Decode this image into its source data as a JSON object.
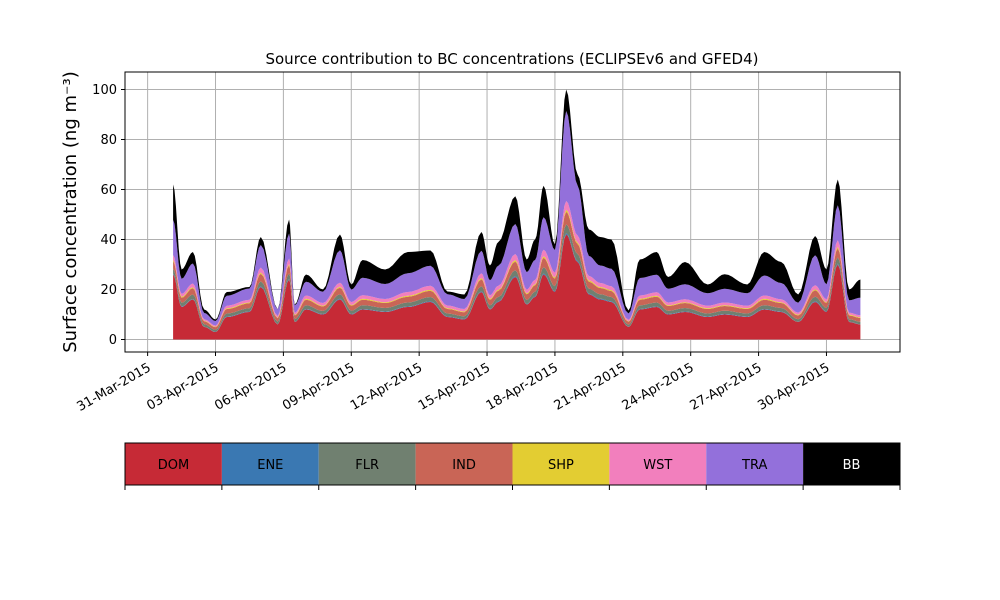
{
  "chart_data": {
    "type": "area",
    "title": "Source contribution to BC concentrations (ECLIPSEv6 and GFED4)",
    "ylabel": "Surface concentration (ng m⁻³)",
    "xlabel": "",
    "ylim": [
      -5,
      107
    ],
    "xlim": [
      "2015-03-30T00:00",
      "2015-05-03T06:00"
    ],
    "grid": true,
    "yticks": [
      0,
      20,
      40,
      60,
      80,
      100
    ],
    "xticks": [
      "2015-03-31",
      "2015-04-03",
      "2015-04-06",
      "2015-04-09",
      "2015-04-12",
      "2015-04-15",
      "2015-04-18",
      "2015-04-21",
      "2015-04-24",
      "2015-04-27",
      "2015-04-30"
    ],
    "xtick_labels": [
      "31-Mar-2015",
      "03-Apr-2015",
      "06-Apr-2015",
      "09-Apr-2015",
      "12-Apr-2015",
      "15-Apr-2015",
      "18-Apr-2015",
      "21-Apr-2015",
      "24-Apr-2015",
      "27-Apr-2015",
      "30-Apr-2015"
    ],
    "stacked": true,
    "total_key_points": {
      "x": [
        "2015-04-01T03:00",
        "2015-04-01T12:00",
        "2015-04-02T00:00",
        "2015-04-02T12:00",
        "2015-04-03T00:00",
        "2015-04-03T12:00",
        "2015-04-04T12:00",
        "2015-04-05T00:00",
        "2015-04-05T18:00",
        "2015-04-06T06:00",
        "2015-04-06T12:00",
        "2015-04-07T00:00",
        "2015-04-07T18:00",
        "2015-04-08T12:00",
        "2015-04-09T00:00",
        "2015-04-09T12:00",
        "2015-04-10T12:00",
        "2015-04-11T12:00",
        "2015-04-12T12:00",
        "2015-04-13T06:00",
        "2015-04-14T00:00",
        "2015-04-14T18:00",
        "2015-04-15T03:00",
        "2015-04-15T12:00",
        "2015-04-16T06:00",
        "2015-04-16T18:00",
        "2015-04-17T03:00",
        "2015-04-17T12:00",
        "2015-04-18T00:00",
        "2015-04-18T12:00",
        "2015-04-19T00:00",
        "2015-04-19T12:00",
        "2015-04-20T00:00",
        "2015-04-20T12:00",
        "2015-04-21T06:00",
        "2015-04-21T18:00",
        "2015-04-22T12:00",
        "2015-04-23T00:00",
        "2015-04-23T18:00",
        "2015-04-24T18:00",
        "2015-04-25T12:00",
        "2015-04-26T12:00",
        "2015-04-27T06:00",
        "2015-04-28T00:00",
        "2015-04-28T18:00",
        "2015-04-29T12:00",
        "2015-04-30T00:00",
        "2015-04-30T12:00",
        "2015-05-01T00:00",
        "2015-05-01T12:00"
      ],
      "y": [
        62,
        28,
        35,
        12,
        8,
        18,
        20,
        40,
        12,
        46,
        14,
        26,
        20,
        42,
        22,
        32,
        28,
        34,
        36,
        20,
        18,
        44,
        30,
        40,
        58,
        32,
        40,
        62,
        38,
        100,
        66,
        45,
        42,
        40,
        12,
        32,
        35,
        25,
        30,
        22,
        26,
        22,
        35,
        30,
        18,
        42,
        28,
        64,
        20,
        24
      ]
    },
    "series": [
      {
        "name": "DOM",
        "color": "#c62a36",
        "values": [
          26,
          13,
          16,
          5,
          3,
          9,
          11,
          21,
          6,
          24,
          7,
          12,
          10,
          16,
          10,
          12,
          11,
          13,
          15,
          9,
          8,
          19,
          12,
          15,
          25,
          14,
          17,
          26,
          19,
          42,
          31,
          18,
          16,
          15,
          5,
          12,
          13,
          10,
          11,
          9,
          10,
          9,
          12,
          11,
          7,
          15,
          11,
          30,
          7,
          6
        ]
      },
      {
        "name": "ENE",
        "color": "#3a78b2",
        "values": [
          0.3,
          0.2,
          0.2,
          0.1,
          0.1,
          0.2,
          0.2,
          0.3,
          0.1,
          0.3,
          0.1,
          0.2,
          0.2,
          0.3,
          0.2,
          0.2,
          0.2,
          0.2,
          0.3,
          0.2,
          0.2,
          0.3,
          0.2,
          0.3,
          0.4,
          0.2,
          0.3,
          0.4,
          0.3,
          0.6,
          0.4,
          0.3,
          0.3,
          0.3,
          0.1,
          0.2,
          0.2,
          0.2,
          0.2,
          0.2,
          0.2,
          0.2,
          0.2,
          0.2,
          0.1,
          0.3,
          0.2,
          0.4,
          0.1,
          0.1
        ]
      },
      {
        "name": "FLR",
        "color": "#708070",
        "values": [
          2,
          1.5,
          1.8,
          1,
          0.8,
          1.2,
          1.3,
          2,
          1,
          2.2,
          1,
          1.5,
          1.2,
          1.8,
          1.3,
          1.5,
          1.4,
          1.6,
          1.7,
          1.2,
          1.1,
          2,
          1.5,
          1.7,
          2.3,
          1.6,
          1.8,
          2.5,
          2,
          3.5,
          2.8,
          2,
          1.8,
          1.7,
          0.8,
          1.5,
          1.6,
          1.3,
          1.4,
          1.2,
          1.3,
          1.2,
          1.5,
          1.4,
          1,
          1.8,
          1.4,
          2.5,
          1,
          1
        ]
      },
      {
        "name": "IND",
        "color": "#c96556",
        "values": [
          3,
          2,
          2.5,
          1.2,
          1,
          1.8,
          2,
          3,
          1.4,
          3.2,
          1.5,
          2.2,
          1.8,
          2.6,
          2,
          2.2,
          2,
          2.3,
          2.5,
          1.8,
          1.6,
          2.8,
          2.2,
          2.5,
          3.5,
          2.3,
          2.6,
          3.8,
          3,
          5,
          4,
          2.8,
          2.5,
          2.4,
          1.2,
          2.2,
          2.3,
          1.9,
          2,
          1.8,
          1.9,
          1.8,
          2.2,
          2,
          1.5,
          2.6,
          2,
          3.6,
          1.5,
          1.5
        ]
      },
      {
        "name": "SHP",
        "color": "#e3cd32",
        "values": [
          0.5,
          0.4,
          0.4,
          0.2,
          0.2,
          0.3,
          0.3,
          0.5,
          0.2,
          0.5,
          0.3,
          0.4,
          0.3,
          0.4,
          0.3,
          0.4,
          0.3,
          0.4,
          0.4,
          0.3,
          0.3,
          0.5,
          0.4,
          0.4,
          0.6,
          0.4,
          0.4,
          0.6,
          0.5,
          0.8,
          0.6,
          0.5,
          0.4,
          0.4,
          0.2,
          0.4,
          0.4,
          0.3,
          0.3,
          0.3,
          0.3,
          0.3,
          0.4,
          0.3,
          0.3,
          0.4,
          0.3,
          0.6,
          0.3,
          0.3
        ]
      },
      {
        "name": "WST",
        "color": "#f27fbd",
        "values": [
          2,
          1.2,
          1.5,
          0.6,
          0.5,
          1,
          1.1,
          2,
          0.7,
          2.2,
          0.8,
          1.3,
          1.1,
          1.6,
          1.2,
          1.4,
          1.3,
          1.5,
          1.6,
          1.1,
          1,
          1.9,
          1.4,
          1.6,
          2.4,
          1.5,
          1.7,
          2.6,
          2,
          3.5,
          2.8,
          1.8,
          1.6,
          1.5,
          0.6,
          1.3,
          1.4,
          1.1,
          1.2,
          1,
          1.1,
          1,
          1.3,
          1.2,
          0.8,
          1.6,
          1.2,
          2.6,
          0.8,
          0.8
        ]
      },
      {
        "name": "TRA",
        "color": "#9370db",
        "values": [
          14,
          6,
          8,
          2.5,
          1.8,
          4,
          4.5,
          9,
          2.6,
          10,
          3,
          5.5,
          4.5,
          13,
          5,
          7,
          6,
          7.5,
          8,
          4.5,
          4,
          9,
          6,
          8,
          12,
          7,
          8,
          13,
          9,
          36,
          20,
          8,
          7,
          7,
          2.5,
          7,
          7,
          5.5,
          6,
          5,
          5.5,
          5,
          8,
          6.5,
          4,
          12,
          6,
          14,
          5,
          7
        ]
      },
      {
        "name": "BB",
        "color": "#000000",
        "values": [
          14.2,
          3.7,
          4.6,
          1.4,
          0.6,
          1.5,
          0.6,
          3.2,
          0.1,
          5.6,
          0.3,
          2.9,
          0.9,
          6.3,
          2,
          7.1,
          5.8,
          8.5,
          6.1,
          1.1,
          1.8,
          7.5,
          5.9,
          9.5,
          11.1,
          5,
          8.2,
          12.6,
          2.2,
          8.6,
          4.4,
          10.6,
          11.4,
          11.7,
          1.2,
          7.4,
          9.1,
          4.7,
          8.9,
          3.5,
          5.8,
          3.5,
          9.4,
          8.4,
          3.3,
          7.7,
          5.9,
          10.3,
          4.3,
          7.3
        ]
      }
    ]
  }
}
